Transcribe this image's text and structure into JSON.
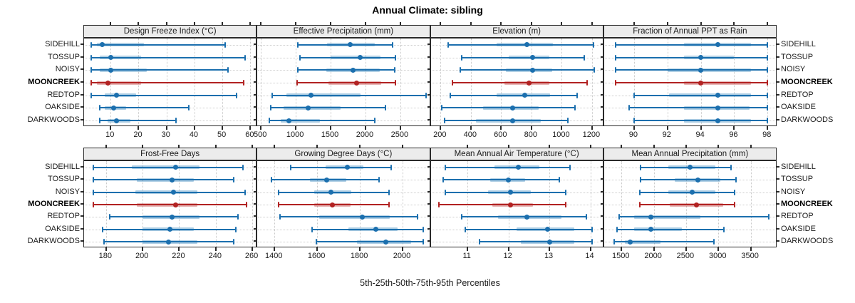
{
  "title": "Annual Climate: sibling",
  "caption": "5th-25th-50th-75th-95th Percentiles",
  "sites": [
    "SIDEHILL",
    "TOSSUP",
    "NOISY",
    "MOONCREEK",
    "REDTOP",
    "OAKSIDE",
    "DARKWOODS"
  ],
  "highlight_site": "MOONCREEK",
  "colors": {
    "normal_line": "#1b6fae",
    "normal_band": "rgba(31,119,180,0.35)",
    "normal_dot": "#1b6fae",
    "highlight_line": "#b22222",
    "highlight_band": "rgba(178,34,34,0.33)",
    "highlight_dot": "#b22222",
    "grid": "#c9c9c9",
    "strip_bg": "#ececec",
    "border": "#2a2a2a"
  },
  "chart_data": {
    "type": "dotplot (5-25-50-75-95 percentile intervals)",
    "title": "Annual Climate: sibling",
    "caption": "5th-25th-50th-75th-95th Percentiles",
    "legend_position": "none",
    "grid": "dotted",
    "rows_top_to_bottom": [
      "SIDEHILL",
      "TOSSUP",
      "NOISY",
      "MOONCREEK",
      "REDTOP",
      "OAKSIDE",
      "DARKWOODS"
    ],
    "percentiles": [
      5,
      25,
      50,
      75,
      95
    ],
    "panels": [
      {
        "title": "Design Freeze Index (°C)",
        "grid_row": 0,
        "grid_col": 0,
        "xlim": [
          0.5,
          62
        ],
        "ticks": [
          10,
          20,
          30,
          40,
          50,
          60
        ],
        "values": {
          "SIDEHILL": [
            3,
            5,
            7,
            22,
            51
          ],
          "TOSSUP": [
            3,
            6,
            10,
            21,
            58
          ],
          "NOISY": [
            3,
            6,
            10,
            23,
            52
          ],
          "MOONCREEK": [
            3,
            5,
            9,
            21,
            57.5
          ],
          "REDTOP": [
            3,
            8,
            12,
            19,
            55
          ],
          "OAKSIDE": [
            6,
            8,
            11,
            15.5,
            38
          ],
          "DARKWOODS": [
            6,
            9,
            12,
            17,
            33.5
          ]
        }
      },
      {
        "title": "Effective Precipitation (mm)",
        "grid_row": 0,
        "grid_col": 1,
        "xlim": [
          450,
          2915
        ],
        "ticks": [
          500,
          1000,
          1500,
          2000,
          2500
        ],
        "values": {
          "SIDEHILL": [
            1030,
            1450,
            1780,
            2130,
            2390
          ],
          "TOSSUP": [
            1060,
            1500,
            1920,
            2220,
            2430
          ],
          "NOISY": [
            1030,
            1440,
            1820,
            2200,
            2420
          ],
          "MOONCREEK": [
            1020,
            1470,
            1870,
            2230,
            2430
          ],
          "REDTOP": [
            660,
            870,
            1220,
            1930,
            2870
          ],
          "OAKSIDE": [
            640,
            830,
            1180,
            1640,
            2290
          ],
          "DARKWOODS": [
            620,
            780,
            900,
            1350,
            2130
          ]
        }
      },
      {
        "title": "Elevation (m)",
        "grid_row": 0,
        "grid_col": 2,
        "xlim": [
          135,
          1270
        ],
        "ticks": [
          200,
          400,
          600,
          800,
          1000,
          1200
        ],
        "values": {
          "SIDEHILL": [
            250,
            570,
            770,
            940,
            1210
          ],
          "TOSSUP": [
            340,
            650,
            810,
            920,
            1150
          ],
          "NOISY": [
            330,
            630,
            810,
            935,
            1215
          ],
          "MOONCREEK": [
            280,
            620,
            785,
            920,
            1170
          ],
          "REDTOP": [
            265,
            570,
            755,
            925,
            1100
          ],
          "OAKSIDE": [
            210,
            480,
            675,
            850,
            1090
          ],
          "DARKWOODS": [
            225,
            435,
            675,
            860,
            1040
          ]
        }
      },
      {
        "title": "Fraction of Annual PPT as Rain",
        "grid_row": 0,
        "grid_col": 3,
        "xlim": [
          88.2,
          98.5
        ],
        "ticks": [
          90,
          92,
          94,
          96,
          98
        ],
        "values": {
          "SIDEHILL": [
            88.9,
            93,
            95,
            97,
            98
          ],
          "TOSSUP": [
            88.9,
            93,
            94,
            96,
            98
          ],
          "NOISY": [
            88.9,
            92,
            94,
            97,
            98
          ],
          "MOONCREEK": [
            88.9,
            93,
            94,
            97,
            98
          ],
          "REDTOP": [
            90,
            92.1,
            95,
            97,
            98
          ],
          "OAKSIDE": [
            89.7,
            93,
            95,
            96.9,
            98
          ],
          "DARKWOODS": [
            90,
            93,
            95,
            97,
            98
          ]
        }
      },
      {
        "title": "Frost-Free Days",
        "grid_row": 1,
        "grid_col": 0,
        "xlim": [
          168,
          262
        ],
        "ticks": [
          180,
          200,
          220,
          240,
          260
        ],
        "values": {
          "SIDEHILL": [
            173,
            194,
            218,
            231,
            255
          ],
          "TOSSUP": [
            173,
            197,
            216,
            228,
            250
          ],
          "NOISY": [
            173,
            196,
            217,
            230,
            256
          ],
          "MOONCREEK": [
            173,
            197,
            218,
            230,
            257
          ],
          "REDTOP": [
            182,
            200,
            216,
            231,
            252
          ],
          "OAKSIDE": [
            178,
            200,
            215,
            228,
            251
          ],
          "DARKWOODS": [
            179,
            200,
            214,
            230,
            250
          ]
        }
      },
      {
        "title": "Growing Degree Days (°C)",
        "grid_row": 1,
        "grid_col": 1,
        "xlim": [
          1320,
          2125
        ],
        "ticks": [
          1400,
          1600,
          1800,
          2000
        ],
        "values": {
          "SIDEHILL": [
            1475,
            1640,
            1740,
            1815,
            1945
          ],
          "TOSSUP": [
            1385,
            1565,
            1645,
            1735,
            1890
          ],
          "NOISY": [
            1420,
            1585,
            1665,
            1760,
            1935
          ],
          "MOONCREEK": [
            1420,
            1585,
            1670,
            1755,
            1935
          ],
          "REDTOP": [
            1425,
            1610,
            1810,
            1940,
            2070
          ],
          "OAKSIDE": [
            1575,
            1745,
            1875,
            1975,
            2095
          ],
          "DARKWOODS": [
            1595,
            1785,
            1920,
            2040,
            2095
          ]
        }
      },
      {
        "title": "Mean Annual Air Temperature (°C)",
        "grid_row": 1,
        "grid_col": 2,
        "xlim": [
          10.1,
          14.3
        ],
        "ticks": [
          11,
          12,
          13,
          14
        ],
        "values": {
          "SIDEHILL": [
            10.45,
            11.65,
            12.25,
            12.75,
            13.5
          ],
          "TOSSUP": [
            10.4,
            11.55,
            12.0,
            12.4,
            13.25
          ],
          "NOISY": [
            10.45,
            11.5,
            12.05,
            12.55,
            13.4
          ],
          "MOONCREEK": [
            10.3,
            11.6,
            12.05,
            12.6,
            13.4
          ],
          "REDTOP": [
            10.85,
            11.75,
            12.45,
            13.3,
            13.9
          ],
          "OAKSIDE": [
            10.95,
            12.2,
            12.95,
            13.6,
            14.05
          ],
          "DARKWOODS": [
            11.3,
            12.3,
            13.0,
            13.6,
            14.05
          ]
        }
      },
      {
        "title": "Mean Annual Precipitation (mm)",
        "grid_row": 1,
        "grid_col": 3,
        "xlim": [
          1230,
          3890
        ],
        "ticks": [
          1500,
          2000,
          2500,
          3000,
          3500
        ],
        "values": {
          "SIDEHILL": [
            1790,
            2230,
            2560,
            2950,
            3190
          ],
          "TOSSUP": [
            1790,
            2320,
            2680,
            3030,
            3270
          ],
          "NOISY": [
            1780,
            2230,
            2590,
            2950,
            3250
          ],
          "MOONCREEK": [
            1780,
            2250,
            2660,
            3070,
            3250
          ],
          "REDTOP": [
            1460,
            1700,
            1950,
            2720,
            3780
          ],
          "OAKSIDE": [
            1430,
            1700,
            1950,
            2430,
            3080
          ],
          "DARKWOODS": [
            1390,
            1550,
            1630,
            2100,
            2930
          ]
        }
      }
    ]
  }
}
